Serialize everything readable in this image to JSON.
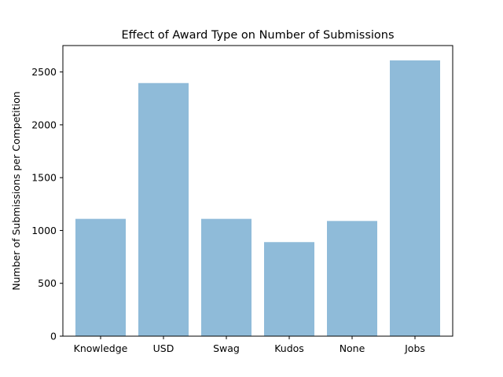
{
  "chart_data": {
    "type": "bar",
    "title": "Effect of Award Type on Number of Submissions",
    "xlabel": "",
    "ylabel": "Number of Submissions per Competition",
    "categories": [
      "Knowledge",
      "USD",
      "Swag",
      "Kudos",
      "None",
      "Jobs"
    ],
    "values": [
      1110,
      2395,
      1110,
      890,
      1090,
      2610
    ],
    "ylim": [
      0,
      2750
    ],
    "yticks": [
      0,
      500,
      1000,
      1500,
      2000,
      2500
    ],
    "grid": false,
    "bar_color": "#1f77b4",
    "bar_opacity": 0.5
  }
}
